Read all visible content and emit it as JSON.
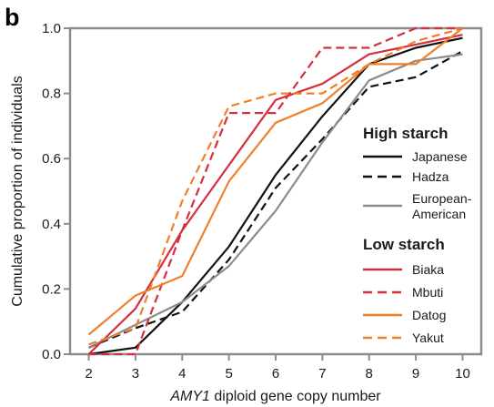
{
  "panel_label": "b",
  "chart_data": {
    "type": "line",
    "title": "",
    "xlabel_italic": "AMY1",
    "xlabel_rest": " diploid gene copy number",
    "ylabel": "Cumulative proportion of individuals",
    "xlim": [
      1.6,
      10.4
    ],
    "ylim": [
      0.0,
      1.0
    ],
    "xticks": [
      2,
      3,
      4,
      5,
      6,
      7,
      8,
      9,
      10
    ],
    "yticks": [
      0.0,
      0.2,
      0.4,
      0.6,
      0.8,
      1.0
    ],
    "ytick_labels": [
      "0.0",
      "0.2",
      "0.4",
      "0.6",
      "0.8",
      "1.0"
    ],
    "grid": false,
    "legend_placement": "right",
    "legend_groups": [
      {
        "heading": "High starch",
        "entries": [
          0,
          1,
          2
        ]
      },
      {
        "heading": "Low starch",
        "entries": [
          3,
          4,
          5,
          6
        ]
      }
    ],
    "series": [
      {
        "name": "Japanese",
        "color": "#111111",
        "dash": "solid",
        "x": [
          2,
          3,
          4,
          5,
          6,
          7,
          8,
          9,
          10
        ],
        "y": [
          0.0,
          0.02,
          0.16,
          0.33,
          0.55,
          0.73,
          0.89,
          0.94,
          0.97
        ]
      },
      {
        "name": "Hadza",
        "color": "#111111",
        "dash": "dashed",
        "x": [
          2,
          3,
          4,
          5,
          6,
          7,
          8,
          9,
          10
        ],
        "y": [
          0.02,
          0.08,
          0.13,
          0.29,
          0.51,
          0.66,
          0.82,
          0.85,
          0.93
        ]
      },
      {
        "name_lines": [
          "European-",
          "American"
        ],
        "color": "#8c8c8c",
        "dash": "solid",
        "x": [
          2,
          3,
          4,
          5,
          6,
          7,
          8,
          9,
          10
        ],
        "y": [
          0.02,
          0.09,
          0.16,
          0.27,
          0.44,
          0.65,
          0.84,
          0.9,
          0.92
        ]
      },
      {
        "name": "Biaka",
        "color": "#d42f3c",
        "dash": "solid",
        "x": [
          2,
          3,
          4,
          5,
          6,
          7,
          8,
          9,
          10
        ],
        "y": [
          0.0,
          0.14,
          0.38,
          0.58,
          0.78,
          0.83,
          0.92,
          0.95,
          0.98
        ]
      },
      {
        "name": "Mbuti",
        "color": "#d42f3c",
        "dash": "dashed",
        "x": [
          2,
          3,
          4,
          5,
          6,
          7,
          8,
          9,
          10
        ],
        "y": [
          0.0,
          0.0,
          0.38,
          0.74,
          0.74,
          0.94,
          0.94,
          1.0,
          1.0
        ]
      },
      {
        "name": "Datog",
        "color": "#f07f2a",
        "dash": "solid",
        "x": [
          2,
          3,
          4,
          5,
          6,
          7,
          8,
          9,
          10
        ],
        "y": [
          0.06,
          0.18,
          0.24,
          0.53,
          0.71,
          0.77,
          0.89,
          0.89,
          1.0
        ]
      },
      {
        "name": "Yakut",
        "color": "#f07f2a",
        "dash": "dashed",
        "x": [
          2,
          3,
          4,
          5,
          6,
          7,
          8,
          9,
          10
        ],
        "y": [
          0.03,
          0.08,
          0.47,
          0.76,
          0.8,
          0.8,
          0.89,
          0.96,
          1.0
        ]
      }
    ]
  }
}
